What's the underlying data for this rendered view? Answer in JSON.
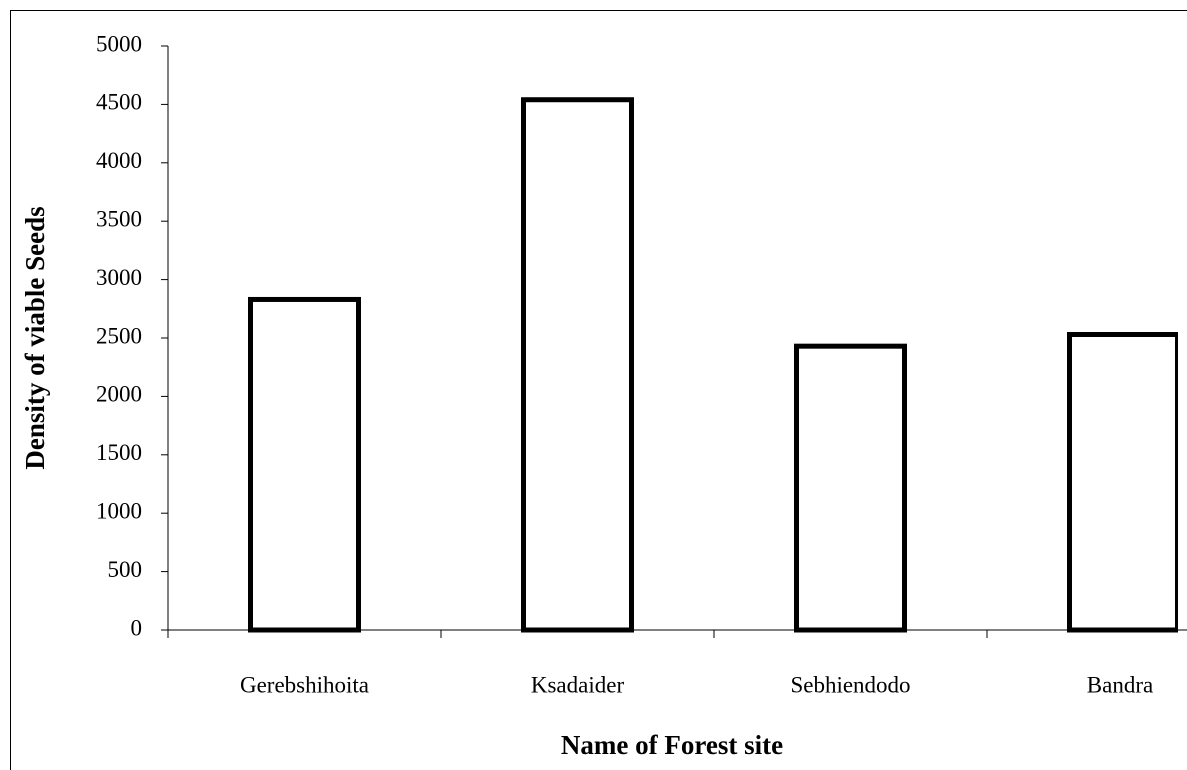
{
  "chart_data": {
    "type": "bar",
    "x_label": "Name of Forest site",
    "y_label": "Density of viable Seeds",
    "categories": [
      "Gerebshihoita",
      "Ksadaider",
      "Sebhiendodo",
      "Bandra"
    ],
    "values": [
      2830,
      4540,
      2430,
      2530
    ],
    "color": "#ffffff",
    "ylim": [
      0,
      5000
    ],
    "yticks": [
      0,
      500,
      1000,
      1500,
      2000,
      2500,
      3000,
      3500,
      4000,
      4500,
      5000
    ],
    "grid": false
  }
}
